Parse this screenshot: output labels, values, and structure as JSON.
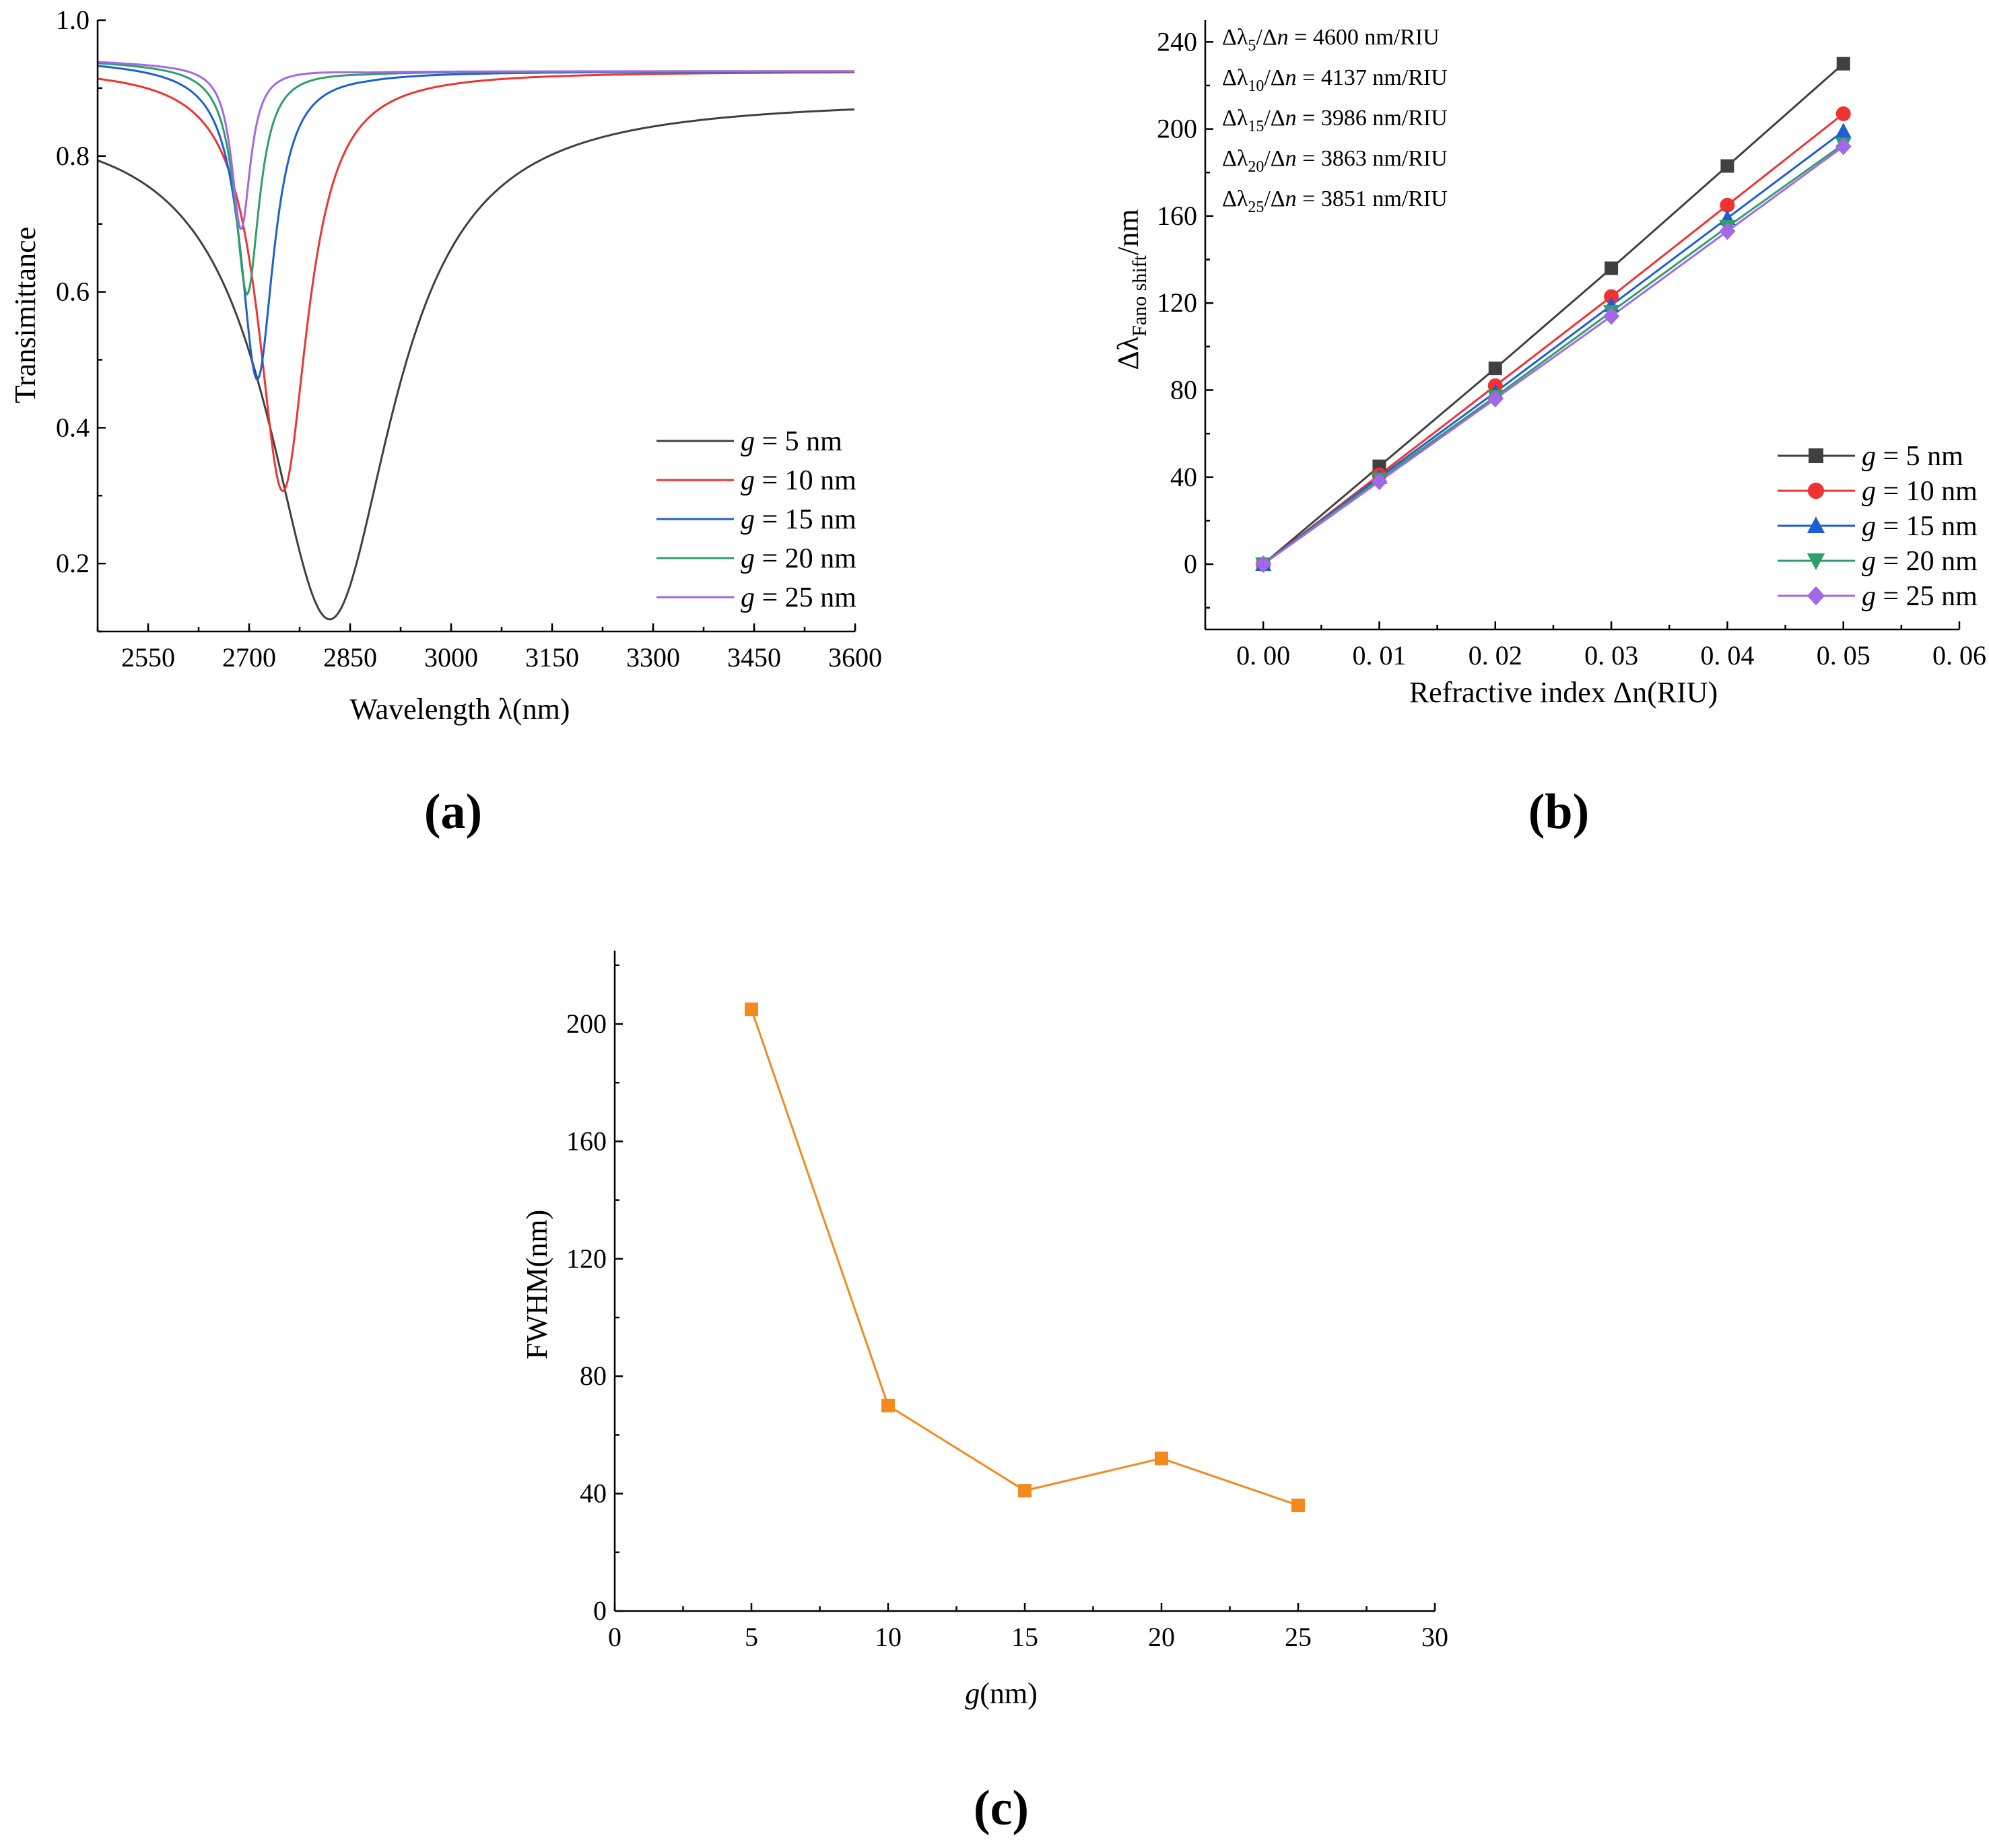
{
  "chart_data": [
    {
      "id": "a",
      "type": "line",
      "panel_label": "(a)",
      "xlabel": "Wavelength λ(nm)",
      "ylabel": "Transimittance",
      "xlim": [
        2475,
        3600
      ],
      "ylim": [
        0.1,
        1.0
      ],
      "xticks": [
        2550,
        2700,
        2850,
        3000,
        3150,
        3300,
        3450,
        3600
      ],
      "yticks": [
        0.2,
        0.4,
        0.6,
        0.8,
        1.0
      ],
      "ytick_labels": [
        "0.2",
        "0.4",
        "0.6",
        "0.8",
        "1.0"
      ],
      "legend_position": "bottom-right",
      "series": [
        {
          "name": "g = 5 nm",
          "g": "g",
          "rest": " = 5 nm",
          "color": "#404040",
          "base": 0.885,
          "depth": 0.765,
          "center": 2820,
          "width": 115,
          "tilt_start": 0.87
        },
        {
          "name": "g = 10 nm",
          "g": "g",
          "rest": " = 10 nm",
          "color": "#ee3333",
          "base": 0.925,
          "depth": 0.62,
          "center": 2750,
          "width": 45,
          "tilt_start": 0.93
        },
        {
          "name": "g = 15 nm",
          "g": "g",
          "rest": " = 15 nm",
          "color": "#1e5fcf",
          "base": 0.925,
          "depth": 0.46,
          "center": 2712,
          "width": 30,
          "tilt_start": 0.94
        },
        {
          "name": "g = 20 nm",
          "g": "g",
          "rest": " = 20 nm",
          "color": "#2e9e6a",
          "base": 0.925,
          "depth": 0.335,
          "center": 2697,
          "width": 22,
          "tilt_start": 0.94
        },
        {
          "name": "g = 25 nm",
          "g": "g",
          "rest": " = 25 nm",
          "color": "#a368e6",
          "base": 0.925,
          "depth": 0.24,
          "center": 2688,
          "width": 17,
          "tilt_start": 0.94
        }
      ]
    },
    {
      "id": "b",
      "type": "line",
      "panel_label": "(b)",
      "xlabel": "Refractive index Δn(RIU)",
      "ylabel_parts": {
        "prefix": "Δλ",
        "sub": "Fano shift",
        "suffix": "/nm"
      },
      "xlim": [
        -0.005,
        0.06
      ],
      "ylim": [
        -30,
        250
      ],
      "xticks": [
        0.0,
        0.01,
        0.02,
        0.03,
        0.04,
        0.05,
        0.06
      ],
      "xtick_labels": [
        "0. 00",
        "0. 01",
        "0. 02",
        "0. 03",
        "0. 04",
        "0. 05",
        "0. 06"
      ],
      "yticks": [
        0,
        40,
        80,
        120,
        160,
        200,
        240
      ],
      "x": [
        0.0,
        0.01,
        0.02,
        0.03,
        0.04,
        0.05
      ],
      "legend_position": "bottom-right",
      "annotations": [
        {
          "lead": "Δλ",
          "sub": "5",
          "mid": "/Δ",
          "n": "n",
          "value": " = 4600 nm/RIU"
        },
        {
          "lead": "Δλ",
          "sub": "10",
          "mid": "/Δ",
          "n": "n",
          "value": " = 4137 nm/RIU"
        },
        {
          "lead": "Δλ",
          "sub": "15",
          "mid": "/Δ",
          "n": "n",
          "value": " = 3986 nm/RIU"
        },
        {
          "lead": "Δλ",
          "sub": "20",
          "mid": "/Δ",
          "n": "n",
          "value": " = 3863 nm/RIU"
        },
        {
          "lead": "Δλ",
          "sub": "25",
          "mid": "/Δ",
          "n": "n",
          "value": " = 3851 nm/RIU"
        }
      ],
      "series": [
        {
          "name": "g = 5 nm",
          "g": "g",
          "rest": " = 5 nm",
          "color": "#404040",
          "marker": "square",
          "values": [
            0,
            45,
            90,
            136,
            183,
            230
          ]
        },
        {
          "name": "g = 10 nm",
          "g": "g",
          "rest": " = 10 nm",
          "color": "#ee3333",
          "marker": "circle",
          "values": [
            0,
            41,
            82,
            123,
            165,
            207
          ]
        },
        {
          "name": "g = 15 nm",
          "g": "g",
          "rest": " = 15 nm",
          "color": "#1e5fcf",
          "marker": "triangle-up",
          "values": [
            0,
            40,
            79,
            119,
            159,
            199
          ]
        },
        {
          "name": "g = 20 nm",
          "g": "g",
          "rest": " = 20 nm",
          "color": "#2e9e6a",
          "marker": "triangle-down",
          "values": [
            0,
            39,
            77,
            116,
            155,
            193
          ]
        },
        {
          "name": "g = 25 nm",
          "g": "g",
          "rest": " = 25 nm",
          "color": "#a368e6",
          "marker": "diamond",
          "values": [
            0,
            38,
            76,
            114,
            153,
            192
          ]
        }
      ]
    },
    {
      "id": "c",
      "type": "line",
      "panel_label": "(c)",
      "xlabel_parts": {
        "g": "g",
        "rest": "(nm)"
      },
      "ylabel": "FWHM(nm)",
      "xlim": [
        0,
        30
      ],
      "ylim": [
        0,
        225
      ],
      "xticks": [
        0,
        5,
        10,
        15,
        20,
        25,
        30
      ],
      "yticks": [
        0,
        40,
        80,
        120,
        160,
        200
      ],
      "series": [
        {
          "name": "FWHM",
          "color": "#f28a1e",
          "marker": "square",
          "x": [
            5,
            10,
            15,
            20,
            25
          ],
          "values": [
            205,
            70,
            41,
            52,
            36
          ]
        }
      ]
    }
  ]
}
